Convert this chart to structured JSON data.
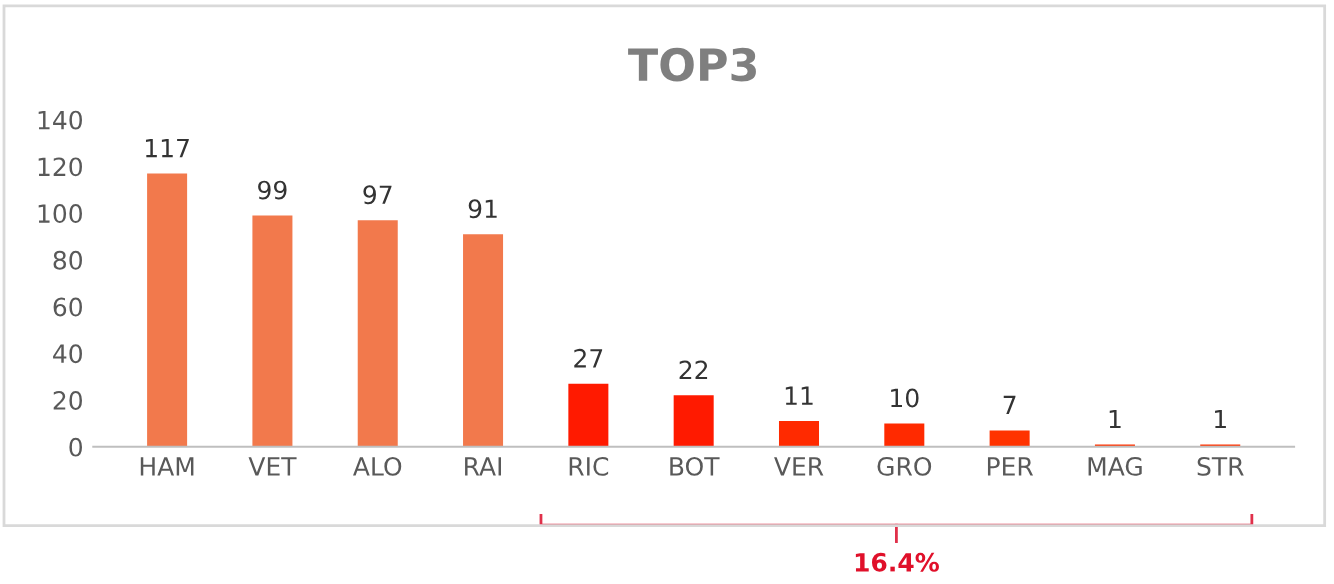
{
  "chart_data": {
    "type": "bar",
    "title": "TOP3",
    "categories": [
      "HAM",
      "VET",
      "ALO",
      "RAI",
      "RIC",
      "BOT",
      "VER",
      "GRO",
      "PER",
      "MAG",
      "STR"
    ],
    "values": [
      117,
      99,
      97,
      91,
      27,
      22,
      11,
      10,
      7,
      1,
      1
    ],
    "colors": [
      "#f2794c",
      "#f2794c",
      "#f2794c",
      "#f2794c",
      "#ff1a00",
      "#ff1a00",
      "#ff2a00",
      "#ff2a00",
      "#ff3300",
      "#ff3300",
      "#ff3300"
    ],
    "data_labels": true,
    "ylim": [
      0,
      140
    ],
    "yticks": [
      0,
      20,
      40,
      60,
      80,
      100,
      120,
      140
    ],
    "grid": false,
    "legend": false,
    "annotations": [
      "16.4%"
    ]
  }
}
